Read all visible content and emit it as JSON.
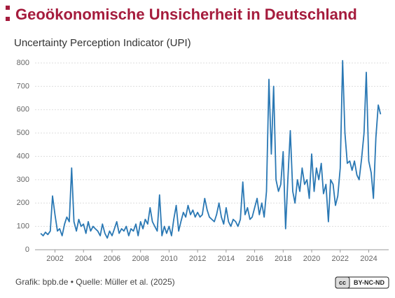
{
  "chart_data": {
    "type": "line",
    "title": "Geoökonomische Unsicherheit in Deutschland",
    "subtitle": "Uncertainty Perception Indicator (UPI)",
    "footer": "Grafik: bpb.de • Quelle: Müller et al. (2025)",
    "license": "BY-NC-ND",
    "color": "#2a78b4",
    "grid": true,
    "xlim": [
      2000.6,
      2025.4
    ],
    "xticks": [
      2002,
      2004,
      2006,
      2008,
      2010,
      2012,
      2014,
      2016,
      2018,
      2020,
      2022,
      2024
    ],
    "ylim": [
      0,
      800
    ],
    "yticks": [
      0,
      100,
      200,
      300,
      400,
      500,
      600,
      700,
      800
    ],
    "x": [
      2001,
      2001.17,
      2001.33,
      2001.5,
      2001.67,
      2001.83,
      2002,
      2002.17,
      2002.33,
      2002.5,
      2002.67,
      2002.83,
      2003,
      2003.17,
      2003.33,
      2003.5,
      2003.67,
      2003.83,
      2004,
      2004.17,
      2004.33,
      2004.5,
      2004.67,
      2004.83,
      2005,
      2005.17,
      2005.33,
      2005.5,
      2005.67,
      2005.83,
      2006,
      2006.17,
      2006.33,
      2006.5,
      2006.67,
      2006.83,
      2007,
      2007.17,
      2007.33,
      2007.5,
      2007.67,
      2007.83,
      2008,
      2008.17,
      2008.33,
      2008.5,
      2008.67,
      2008.83,
      2009,
      2009.17,
      2009.33,
      2009.5,
      2009.67,
      2009.83,
      2010,
      2010.17,
      2010.33,
      2010.5,
      2010.67,
      2010.83,
      2011,
      2011.17,
      2011.33,
      2011.5,
      2011.67,
      2011.83,
      2012,
      2012.17,
      2012.33,
      2012.5,
      2012.67,
      2012.83,
      2013,
      2013.17,
      2013.33,
      2013.5,
      2013.67,
      2013.83,
      2014,
      2014.17,
      2014.33,
      2014.5,
      2014.67,
      2014.83,
      2015,
      2015.17,
      2015.33,
      2015.5,
      2015.67,
      2015.83,
      2016,
      2016.17,
      2016.33,
      2016.5,
      2016.67,
      2016.83,
      2017,
      2017.17,
      2017.33,
      2017.5,
      2017.67,
      2017.83,
      2018,
      2018.17,
      2018.33,
      2018.5,
      2018.67,
      2018.83,
      2019,
      2019.17,
      2019.33,
      2019.5,
      2019.67,
      2019.83,
      2020,
      2020.17,
      2020.33,
      2020.5,
      2020.67,
      2020.83,
      2021,
      2021.17,
      2021.33,
      2021.5,
      2021.67,
      2021.83,
      2022,
      2022.17,
      2022.33,
      2022.5,
      2022.67,
      2022.83,
      2023,
      2023.17,
      2023.33,
      2023.5,
      2023.67,
      2023.83,
      2024,
      2024.17,
      2024.33,
      2024.5,
      2024.67,
      2024.83
    ],
    "values": [
      70,
      60,
      75,
      65,
      80,
      230,
      150,
      80,
      90,
      60,
      110,
      140,
      120,
      350,
      120,
      80,
      130,
      100,
      110,
      70,
      120,
      80,
      100,
      90,
      80,
      60,
      110,
      70,
      50,
      80,
      60,
      90,
      120,
      70,
      90,
      80,
      100,
      60,
      90,
      80,
      110,
      60,
      120,
      90,
      130,
      110,
      180,
      120,
      100,
      80,
      235,
      60,
      100,
      70,
      100,
      60,
      130,
      190,
      80,
      120,
      160,
      140,
      190,
      150,
      170,
      140,
      160,
      140,
      150,
      220,
      170,
      140,
      130,
      120,
      150,
      200,
      140,
      110,
      180,
      120,
      100,
      130,
      120,
      100,
      130,
      290,
      150,
      180,
      130,
      140,
      180,
      220,
      150,
      200,
      140,
      250,
      730,
      410,
      700,
      300,
      250,
      280,
      420,
      90,
      300,
      510,
      250,
      200,
      300,
      250,
      350,
      280,
      300,
      220,
      410,
      250,
      350,
      300,
      370,
      240,
      280,
      120,
      300,
      280,
      190,
      230,
      350,
      810,
      500,
      370,
      380,
      340,
      380,
      320,
      300,
      390,
      500,
      760,
      380,
      330,
      220,
      480,
      620,
      580
    ]
  }
}
